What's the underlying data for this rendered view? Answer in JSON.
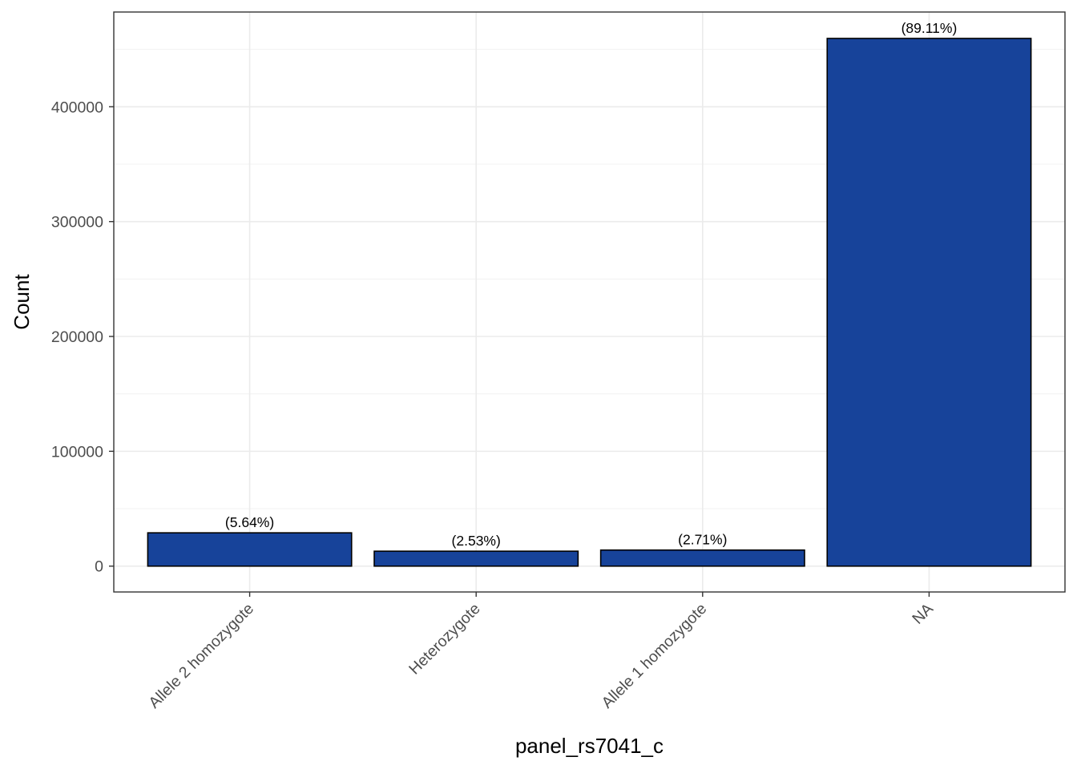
{
  "chart_data": {
    "type": "bar",
    "title": "",
    "xlabel": "panel_rs7041_c",
    "ylabel": "Count",
    "categories": [
      "Allele 2 homozygote",
      "Heterozygote",
      "Allele 1 homozygote",
      "NA"
    ],
    "values": [
      29000,
      13000,
      14000,
      459500
    ],
    "data_labels": [
      "(5.64%)",
      "(2.53%)",
      "(2.71%)",
      "(89.11%)"
    ],
    "ylim": [
      -22500,
      482500
    ],
    "y_ticks": [
      0,
      100000,
      200000,
      300000,
      400000
    ],
    "y_tick_labels": [
      "0",
      "100000",
      "200000",
      "300000",
      "400000"
    ],
    "y_minor_ticks": [
      50000,
      150000,
      250000,
      350000,
      450000
    ],
    "grid": true,
    "legend": "none",
    "colors": {
      "bar_fill": "#17439A",
      "bar_outline": "#000000",
      "grid_major": "#ebebeb",
      "grid_minor": "#f3f3f3",
      "panel_border": "#333333",
      "tick_text": "#4d4d4d"
    }
  }
}
